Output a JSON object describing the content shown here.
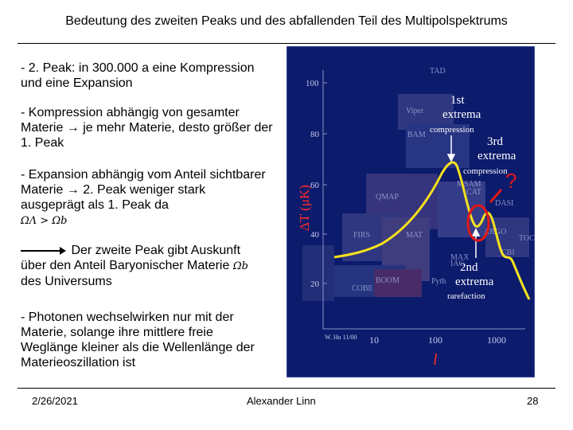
{
  "slide": {
    "title": "Bedeutung des zweiten Peaks und des abfallenden Teil des Multipolspektrums",
    "para1": "- 2. Peak: in 300.000 a eine Kompression und eine Expansion",
    "para2_a": "- Kompression abhängig von gesamter Materie ",
    "para2_arrow": "→",
    "para2_b": " je mehr Materie, desto größer der 1. Peak",
    "para3_a": "- Expansion abhängig vom Anteil sichtbarer Materie ",
    "para3_arrow": "→",
    "para3_b": " 2. Peak weniger stark ausgeprägt als 1. Peak da",
    "para3_formula": "ΩΛ > Ωb",
    "para4_a": "Der zweite Peak gibt Auskunft über den Anteil Baryonischer Materie ",
    "para4_sym": "Ωb",
    "para4_b": " des Universums",
    "para5": "- Photonen wechselwirken nur mit der Materie, solange ihre mittlere freie Weglänge kleiner als die Wellenlänge der Materieoszillation ist"
  },
  "footer": {
    "date": "2/26/2021",
    "author": "Alexander Linn",
    "page": "28"
  },
  "figure": {
    "y_axis_label": "ΔT (μK)",
    "x_axis_label": "l",
    "y_ticks": [
      "100",
      "80",
      "60",
      "40",
      "20"
    ],
    "x_ticks": [
      "10",
      "100",
      "1000"
    ],
    "credit": "W. Hu 11/00",
    "annotations": {
      "first_top": "1st",
      "first_mid": "extrema",
      "first_sub": "compression",
      "third_top": "3rd",
      "third_mid": "extrema",
      "third_sub": "compression",
      "second_top": "2nd",
      "second_mid": "extrema",
      "second_sub": "rarefaction",
      "question": "?"
    },
    "experiments": [
      "TAD",
      "Viper",
      "BAM",
      "QMAP",
      "FIRS",
      "MAT",
      "CBI",
      "COBE",
      "BOOM",
      "Pyth",
      "DASI",
      "CAT",
      "ARGO",
      "TOCO",
      "MAX",
      "MSAM",
      "IAC"
    ],
    "colors": {
      "background": "#0c1b6c",
      "curve": "#f5e11e",
      "annotation": "#ffffff",
      "axis_label": "#ff2a2a",
      "circle": "#e01818"
    }
  }
}
